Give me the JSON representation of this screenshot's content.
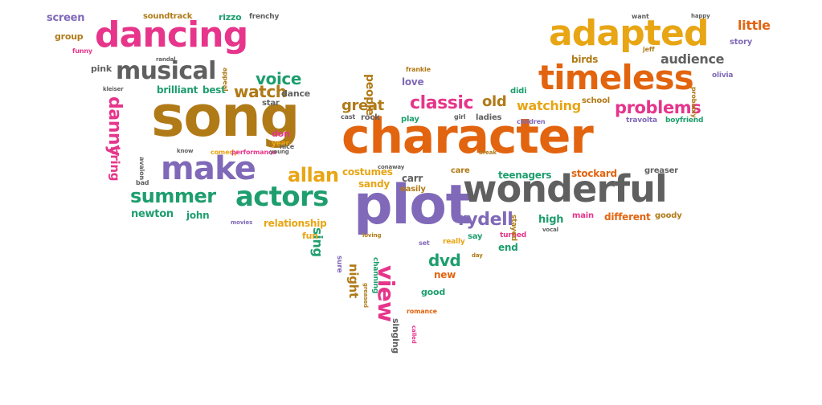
{
  "colors": {
    "pink": "#e6358b",
    "orange": "#e2640f",
    "gold": "#e8a514",
    "olive": "#b07a17",
    "purple": "#8069b8",
    "green": "#1e9e6e",
    "gray": "#606060",
    "background": "#ffffff"
  },
  "words": [
    {
      "text": "song",
      "color": "olive"
    },
    {
      "text": "character",
      "color": "orange"
    },
    {
      "text": "plot",
      "color": "purple"
    },
    {
      "text": "wonderful",
      "color": "gray"
    },
    {
      "text": "dancing",
      "color": "pink"
    },
    {
      "text": "adapted",
      "color": "gold"
    },
    {
      "text": "timeless",
      "color": "orange"
    },
    {
      "text": "make",
      "color": "purple"
    },
    {
      "text": "actors",
      "color": "green"
    },
    {
      "text": "musical",
      "color": "gray"
    },
    {
      "text": "summer",
      "color": "green"
    },
    {
      "text": "view",
      "color": "pink"
    },
    {
      "text": "allan",
      "color": "gold"
    },
    {
      "text": "rydell",
      "color": "purple"
    },
    {
      "text": "classic",
      "color": "pink"
    },
    {
      "text": "danny",
      "color": "pink"
    },
    {
      "text": "problems",
      "color": "pink"
    },
    {
      "text": "voice",
      "color": "green"
    },
    {
      "text": "watch",
      "color": "olive"
    },
    {
      "text": "great",
      "color": "olive"
    },
    {
      "text": "old",
      "color": "olive"
    },
    {
      "text": "watching",
      "color": "gold"
    },
    {
      "text": "little",
      "color": "orange"
    },
    {
      "text": "audience",
      "color": "gray"
    },
    {
      "text": "dvd",
      "color": "green"
    },
    {
      "text": "screen",
      "color": "purple"
    },
    {
      "text": "newton",
      "color": "green"
    },
    {
      "text": "john",
      "color": "green"
    },
    {
      "text": "bring",
      "color": "pink"
    },
    {
      "text": "costumes",
      "color": "gold"
    },
    {
      "text": "stockard",
      "color": "orange"
    },
    {
      "text": "love",
      "color": "purple"
    },
    {
      "text": "sing",
      "color": "green"
    },
    {
      "text": "night",
      "color": "olive"
    },
    {
      "text": "new",
      "color": "orange"
    },
    {
      "text": "birds",
      "color": "olive"
    },
    {
      "text": "teenagers",
      "color": "green"
    },
    {
      "text": "carr",
      "color": "gray"
    },
    {
      "text": "brilliant",
      "color": "green"
    },
    {
      "text": "best",
      "color": "green"
    },
    {
      "text": "people",
      "color": "olive"
    },
    {
      "text": "group",
      "color": "olive"
    },
    {
      "text": "soundtrack",
      "color": "olive"
    },
    {
      "text": "rizzo",
      "color": "green"
    },
    {
      "text": "dance",
      "color": "gray"
    },
    {
      "text": "star",
      "color": "gray"
    },
    {
      "text": "sandy",
      "color": "gold"
    },
    {
      "text": "relationship",
      "color": "gold"
    },
    {
      "text": "easily",
      "color": "olive"
    },
    {
      "text": "care",
      "color": "olive"
    },
    {
      "text": "high",
      "color": "green"
    },
    {
      "text": "main",
      "color": "pink"
    },
    {
      "text": "different",
      "color": "orange"
    },
    {
      "text": "goody",
      "color": "olive"
    },
    {
      "text": "good",
      "color": "green"
    },
    {
      "text": "end",
      "color": "green"
    },
    {
      "text": "say",
      "color": "green"
    },
    {
      "text": "fun",
      "color": "gold"
    },
    {
      "text": "pink",
      "color": "gray"
    },
    {
      "text": "singing",
      "color": "gray"
    },
    {
      "text": "didi",
      "color": "green"
    },
    {
      "text": "ladies",
      "color": "gray"
    },
    {
      "text": "play",
      "color": "green"
    },
    {
      "text": "rock",
      "color": "gray"
    },
    {
      "text": "story",
      "color": "purple"
    },
    {
      "text": "school",
      "color": "olive"
    },
    {
      "text": "don",
      "color": "pink"
    },
    {
      "text": "greaser",
      "color": "gray"
    },
    {
      "text": "travolta",
      "color": "purple"
    },
    {
      "text": "boyfriend",
      "color": "green"
    },
    {
      "text": "olivia",
      "color": "purple"
    },
    {
      "text": "probably",
      "color": "olive"
    },
    {
      "text": "channing",
      "color": "green"
    },
    {
      "text": "set",
      "color": "purple"
    },
    {
      "text": "sure",
      "color": "purple"
    },
    {
      "text": "really",
      "color": "gold"
    },
    {
      "text": "turned",
      "color": "pink"
    },
    {
      "text": "stayed",
      "color": "olive"
    },
    {
      "text": "year",
      "color": "gold"
    },
    {
      "text": "comedy",
      "color": "gold"
    },
    {
      "text": "performance",
      "color": "pink"
    },
    {
      "text": "nice",
      "color": "gray"
    },
    {
      "text": "frenchy",
      "color": "gray"
    },
    {
      "text": "want",
      "color": "gray"
    },
    {
      "text": "happy",
      "color": "gray"
    },
    {
      "text": "jeff",
      "color": "olive"
    },
    {
      "text": "funny",
      "color": "pink"
    },
    {
      "text": "randal",
      "color": "gray"
    },
    {
      "text": "appeal",
      "color": "olive"
    },
    {
      "text": "kleiser",
      "color": "gray"
    },
    {
      "text": "frankie",
      "color": "olive"
    },
    {
      "text": "cast",
      "color": "gray"
    },
    {
      "text": "girl",
      "color": "gray"
    },
    {
      "text": "children",
      "color": "purple"
    },
    {
      "text": "know",
      "color": "gray"
    },
    {
      "text": "avalon",
      "color": "gray"
    },
    {
      "text": "bad",
      "color": "gray"
    },
    {
      "text": "young",
      "color": "gray"
    },
    {
      "text": "movies",
      "color": "purple"
    },
    {
      "text": "conaway",
      "color": "gray"
    },
    {
      "text": "break",
      "color": "olive"
    },
    {
      "text": "loving",
      "color": "olive"
    },
    {
      "text": "day",
      "color": "olive"
    },
    {
      "text": "greased",
      "color": "olive"
    },
    {
      "text": "romance",
      "color": "orange"
    },
    {
      "text": "called",
      "color": "pink"
    },
    {
      "text": "vocal",
      "color": "gray"
    }
  ]
}
